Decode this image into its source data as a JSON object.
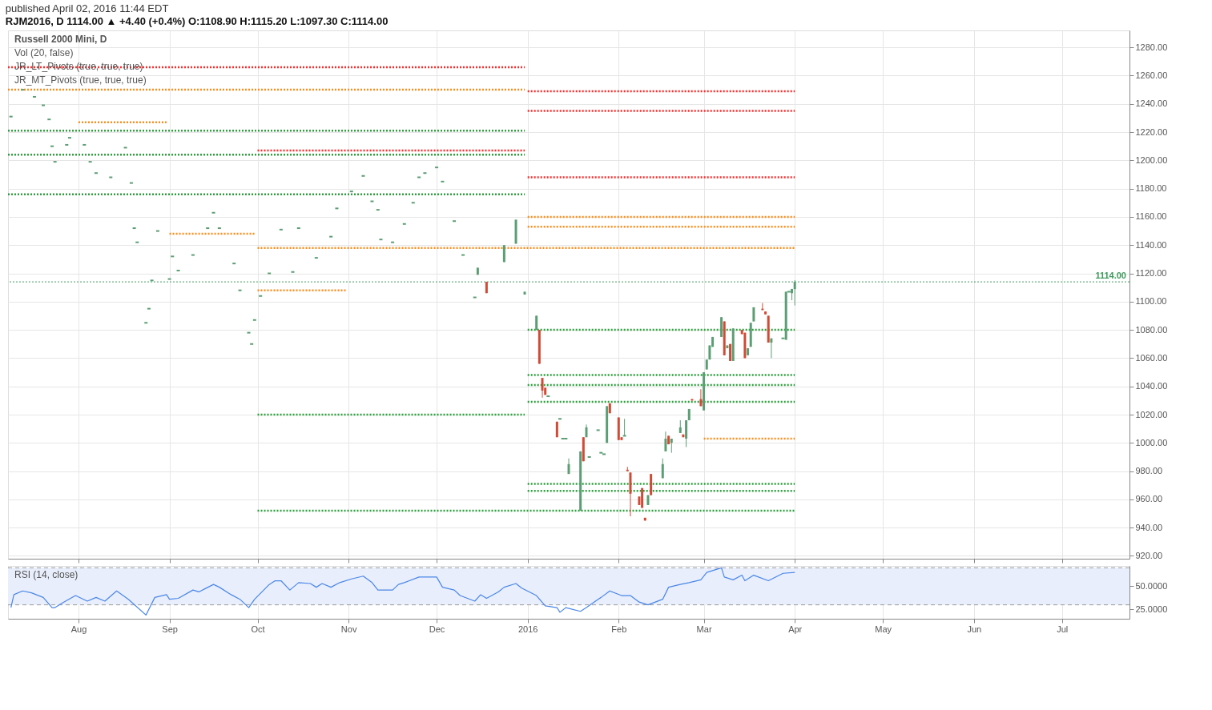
{
  "chart_data": [
    {
      "type": "candlestick",
      "title": "published April 02, 2016 11:44 EDT",
      "subtitle": "RJM2016, D  1114.00 ▲ +4.40 (+0.4%)  O:1108.90 H:1115.20 L:1097.30 C:1114.00",
      "annotations": [
        "Russell 2000 Mini, D",
        "Vol (20, false)",
        "JR_LT_Pivots (true, true, true)",
        "JR_MT_Pivots (true, true, true)"
      ],
      "xlim": [
        "2015-07-08",
        "2016-07-24"
      ],
      "xticks": [
        {
          "value": "2015-08-01",
          "label": null
        },
        {
          "value": "2015-09-01",
          "label": null
        },
        {
          "value": "2015-10-01",
          "label": null
        },
        {
          "value": "2015-11-01",
          "label": null
        },
        {
          "value": "2015-12-01",
          "label": null
        },
        {
          "value": "2016-01-01",
          "label": null
        },
        {
          "value": "2016-02-01",
          "label": null
        },
        {
          "value": "2016-03-01",
          "label": null
        },
        {
          "value": "2016-04-01",
          "label": null
        },
        {
          "value": "2016-05-01",
          "label": null
        },
        {
          "value": "2016-06-01",
          "label": null
        },
        {
          "value": "2016-07-01",
          "label": null
        }
      ],
      "ylim": [
        918,
        1292
      ],
      "yticks": [
        {
          "value": 920,
          "label": "920.00"
        },
        {
          "value": 940,
          "label": "940.00"
        },
        {
          "value": 960,
          "label": "960.00"
        },
        {
          "value": 980,
          "label": "980.00"
        },
        {
          "value": 1000,
          "label": "1000.00"
        },
        {
          "value": 1020,
          "label": "1020.00"
        },
        {
          "value": 1040,
          "label": "1040.00"
        },
        {
          "value": 1060,
          "label": "1060.00"
        },
        {
          "value": 1080,
          "label": "1080.00"
        },
        {
          "value": 1100,
          "label": "1100.00"
        },
        {
          "value": 1120,
          "label": "1120.00"
        },
        {
          "value": 1140,
          "label": "1140.00"
        },
        {
          "value": 1160,
          "label": "1160.00"
        },
        {
          "value": 1180,
          "label": "1180.00"
        },
        {
          "value": 1200,
          "label": "1200.00"
        },
        {
          "value": 1220,
          "label": "1220.00"
        },
        {
          "value": 1240,
          "label": "1240.00"
        },
        {
          "value": 1260,
          "label": "1260.00"
        },
        {
          "value": 1280,
          "label": "1280.00"
        }
      ],
      "grid": true,
      "tick_labels": "y",
      "ref_lines": [
        {
          "axis": "y",
          "value": 1114,
          "label": "1114.00",
          "color": "#3d9a5c",
          "line_style": "dotted"
        }
      ],
      "series": [
        {
          "type": "line",
          "color": "#ff2a2a",
          "line_style": "dotted",
          "x": [
            "2015-07-08",
            "2015-12-31"
          ],
          "values": [
            1266,
            1266
          ]
        },
        {
          "type": "line",
          "color": "#ff2a2a",
          "line_style": "dotted",
          "x": [
            "2016-01-01",
            "2016-04-01"
          ],
          "values": [
            1249,
            1249
          ]
        },
        {
          "type": "line",
          "color": "#ff2a2a",
          "line_style": "dotted",
          "x": [
            "2016-01-01",
            "2016-04-01"
          ],
          "values": [
            1235,
            1235
          ]
        },
        {
          "type": "line",
          "color": "#ff2a2a",
          "line_style": "dotted",
          "x": [
            "2016-01-01",
            "2016-04-01"
          ],
          "values": [
            1188,
            1188
          ]
        },
        {
          "type": "line",
          "color": "#ff2a2a",
          "line_style": "dotted",
          "x": [
            "2015-10-01",
            "2015-12-31"
          ],
          "values": [
            1207,
            1207
          ]
        },
        {
          "type": "line",
          "color": "#ff8c1a",
          "line_style": "dotted",
          "x": [
            "2015-07-08",
            "2015-12-31"
          ],
          "values": [
            1250,
            1250
          ]
        },
        {
          "type": "line",
          "color": "#ff8c1a",
          "line_style": "dotted",
          "x": [
            "2016-01-01",
            "2016-04-01"
          ],
          "values": [
            1160,
            1160
          ]
        },
        {
          "type": "line",
          "color": "#ff8c1a",
          "line_style": "dotted",
          "x": [
            "2016-01-01",
            "2016-04-01"
          ],
          "values": [
            1153,
            1153
          ]
        },
        {
          "type": "line",
          "color": "#ff8c1a",
          "line_style": "dotted",
          "x": [
            "2015-10-01",
            "2016-04-01"
          ],
          "values": [
            1138,
            1138
          ]
        },
        {
          "type": "line",
          "color": "#ff8c1a",
          "line_style": "dotted",
          "x": [
            "2016-03-01",
            "2016-04-01"
          ],
          "values": [
            1003,
            1003
          ]
        },
        {
          "type": "line",
          "color": "#ff8c1a",
          "line_style": "dotted",
          "x": [
            "2015-10-01",
            "2015-10-31"
          ],
          "values": [
            1108,
            1108
          ]
        },
        {
          "type": "line",
          "color": "#ff8c1a",
          "line_style": "dotted",
          "x": [
            "2015-09-01",
            "2015-09-30"
          ],
          "values": [
            1148,
            1148
          ]
        },
        {
          "type": "line",
          "color": "#ff8c1a",
          "line_style": "dotted",
          "x": [
            "2015-08-01",
            "2015-08-31"
          ],
          "values": [
            1227,
            1227
          ]
        },
        {
          "type": "line",
          "color": "#2e9e3e",
          "line_style": "dotted",
          "x": [
            "2015-07-08",
            "2015-12-31"
          ],
          "values": [
            1221,
            1221
          ]
        },
        {
          "type": "line",
          "color": "#2e9e3e",
          "line_style": "dotted",
          "x": [
            "2015-07-08",
            "2015-12-31"
          ],
          "values": [
            1204,
            1204
          ]
        },
        {
          "type": "line",
          "color": "#2e9e3e",
          "line_style": "dotted",
          "x": [
            "2015-07-08",
            "2015-12-31"
          ],
          "values": [
            1176,
            1176
          ]
        },
        {
          "type": "line",
          "color": "#2e9e3e",
          "line_style": "dotted",
          "x": [
            "2015-10-01",
            "2015-12-31"
          ],
          "values": [
            1020,
            1020
          ]
        },
        {
          "type": "line",
          "color": "#2e9e3e",
          "line_style": "dotted",
          "x": [
            "2016-01-01",
            "2016-04-01"
          ],
          "values": [
            1080,
            1080
          ]
        },
        {
          "type": "line",
          "color": "#2e9e3e",
          "line_style": "dotted",
          "x": [
            "2016-01-01",
            "2016-04-01"
          ],
          "values": [
            1048,
            1048
          ]
        },
        {
          "type": "line",
          "color": "#2e9e3e",
          "line_style": "dotted",
          "x": [
            "2016-01-01",
            "2016-04-01"
          ],
          "values": [
            1041,
            1041
          ]
        },
        {
          "type": "line",
          "color": "#2e9e3e",
          "line_style": "dotted",
          "x": [
            "2016-01-01",
            "2016-04-01"
          ],
          "values": [
            1029,
            1029
          ]
        },
        {
          "type": "line",
          "color": "#2e9e3e",
          "line_style": "dotted",
          "x": [
            "2016-01-01",
            "2016-04-01"
          ],
          "values": [
            971,
            971
          ]
        },
        {
          "type": "line",
          "color": "#2e9e3e",
          "line_style": "dotted",
          "x": [
            "2016-01-01",
            "2016-04-01"
          ],
          "values": [
            966,
            966
          ]
        },
        {
          "type": "line",
          "color": "#2e9e3e",
          "line_style": "dotted",
          "x": [
            "2015-10-01",
            "2016-04-01"
          ],
          "values": [
            952,
            952
          ]
        },
        {
          "color": "#5c9e74",
          "x": [
            "2015-07-09",
            "2015-07-13",
            "2015-07-17",
            "2015-07-20",
            "2015-07-22",
            "2015-07-23",
            "2015-07-24",
            "2015-07-28",
            "2015-07-29",
            "2015-08-03",
            "2015-08-05",
            "2015-08-07",
            "2015-08-12",
            "2015-08-17",
            "2015-08-19",
            "2015-08-20",
            "2015-08-21",
            "2015-08-24",
            "2015-08-25",
            "2015-08-26",
            "2015-08-28",
            "2015-09-01",
            "2015-09-02",
            "2015-09-04",
            "2015-09-09",
            "2015-09-14",
            "2015-09-16",
            "2015-09-18",
            "2015-09-23",
            "2015-09-25",
            "2015-09-28",
            "2015-09-29",
            "2015-09-30",
            "2015-10-02",
            "2015-10-05",
            "2015-10-09",
            "2015-10-13",
            "2015-10-15",
            "2015-10-21",
            "2015-10-26",
            "2015-10-28",
            "2015-11-02",
            "2015-11-06",
            "2015-11-09",
            "2015-11-11",
            "2015-11-12",
            "2015-11-16",
            "2015-11-20",
            "2015-11-23",
            "2015-11-25",
            "2015-11-27",
            "2015-12-01",
            "2015-12-03",
            "2015-12-07",
            "2015-12-10",
            "2015-12-14",
            "2015-12-15",
            "2015-12-24",
            "2015-12-28",
            "2015-12-31",
            "2016-01-04",
            "2016-01-08",
            "2016-01-12",
            "2016-01-13",
            "2016-01-14",
            "2016-01-15",
            "2016-01-19",
            "2016-01-21",
            "2016-01-22",
            "2016-01-25",
            "2016-01-26",
            "2016-01-27",
            "2016-01-28",
            "2016-02-03",
            "2016-02-11",
            "2016-02-16",
            "2016-02-17",
            "2016-02-19",
            "2016-02-22",
            "2016-02-24",
            "2016-02-25",
            "2016-03-01",
            "2016-03-02",
            "2016-03-03",
            "2016-03-04",
            "2016-03-07",
            "2016-03-09",
            "2016-03-11",
            "2016-03-16",
            "2016-03-17",
            "2016-03-18",
            "2016-03-24",
            "2016-03-28",
            "2016-03-29",
            "2016-03-30",
            "2016-03-31",
            "2016-04-01"
          ],
          "ohlc": [
            [
              1231,
              1231,
              1231,
              1231
            ],
            [
              1250,
              1250,
              1250,
              1250
            ],
            [
              1245,
              1245,
              1245,
              1245
            ],
            [
              1239,
              1239,
              1239,
              1239
            ],
            [
              1229,
              1229,
              1229,
              1229
            ],
            [
              1210,
              1210,
              1210,
              1210
            ],
            [
              1199,
              1199,
              1199,
              1199
            ],
            [
              1211,
              1211,
              1211,
              1211
            ],
            [
              1216,
              1216,
              1216,
              1216
            ],
            [
              1211,
              1211,
              1211,
              1211
            ],
            [
              1199,
              1199,
              1199,
              1199
            ],
            [
              1191,
              1191,
              1191,
              1191
            ],
            [
              1188,
              1188,
              1188,
              1188
            ],
            [
              1209,
              1209,
              1209,
              1209
            ],
            [
              1184,
              1184,
              1184,
              1184
            ],
            [
              1152,
              1152,
              1152,
              1152
            ],
            [
              1142,
              1142,
              1142,
              1142
            ],
            [
              1085,
              1085,
              1085,
              1085
            ],
            [
              1095,
              1095,
              1095,
              1095
            ],
            [
              1115,
              1115,
              1115,
              1115
            ],
            [
              1150,
              1150,
              1150,
              1150
            ],
            [
              1116,
              1116,
              1116,
              1116
            ],
            [
              1132,
              1132,
              1132,
              1132
            ],
            [
              1122,
              1122,
              1122,
              1122
            ],
            [
              1133,
              1133,
              1133,
              1133
            ],
            [
              1152,
              1152,
              1152,
              1152
            ],
            [
              1163,
              1163,
              1163,
              1163
            ],
            [
              1152,
              1152,
              1152,
              1152
            ],
            [
              1127,
              1127,
              1127,
              1127
            ],
            [
              1108,
              1108,
              1108,
              1108
            ],
            [
              1078,
              1078,
              1078,
              1078
            ],
            [
              1070,
              1070,
              1070,
              1070
            ],
            [
              1087,
              1087,
              1087,
              1087
            ],
            [
              1104,
              1104,
              1104,
              1104
            ],
            [
              1120,
              1120,
              1120,
              1120
            ],
            [
              1151,
              1151,
              1151,
              1151
            ],
            [
              1121,
              1121,
              1121,
              1121
            ],
            [
              1152,
              1152,
              1152,
              1152
            ],
            [
              1131,
              1131,
              1131,
              1131
            ],
            [
              1146,
              1146,
              1146,
              1146
            ],
            [
              1166,
              1166,
              1166,
              1166
            ],
            [
              1178,
              1178,
              1178,
              1178
            ],
            [
              1189,
              1189,
              1189,
              1189
            ],
            [
              1171,
              1171,
              1171,
              1171
            ],
            [
              1165,
              1165,
              1165,
              1165
            ],
            [
              1144,
              1144,
              1144,
              1144
            ],
            [
              1142,
              1142,
              1142,
              1142
            ],
            [
              1155,
              1155,
              1155,
              1155
            ],
            [
              1170,
              1170,
              1170,
              1170
            ],
            [
              1188,
              1188,
              1188,
              1188
            ],
            [
              1191,
              1191,
              1191,
              1191
            ],
            [
              1195,
              1195,
              1195,
              1195
            ],
            [
              1185,
              1185,
              1185,
              1185
            ],
            [
              1157,
              1157,
              1157,
              1157
            ],
            [
              1133,
              1133,
              1133,
              1133
            ],
            [
              1103,
              1103,
              1103,
              1103
            ],
            [
              1119,
              1124,
              1119,
              1124
            ],
            [
              1128,
              1140,
              1128,
              1140
            ],
            [
              1141,
              1158,
              1141,
              1158
            ],
            [
              1105,
              1107,
              1105,
              1107
            ],
            [
              1080,
              1090,
              1080,
              1090
            ],
            [
              1033,
              1033,
              1033,
              1033
            ],
            [
              1017,
              1017,
              1017,
              1017
            ],
            [
              1003,
              1003,
              1003,
              1003
            ],
            [
              1003,
              1003,
              1003,
              1003
            ],
            [
              978,
              989,
              978,
              985
            ],
            [
              952,
              994,
              952,
              994
            ],
            [
              1004,
              1013,
              1004,
              1011
            ],
            [
              990,
              990,
              990,
              990
            ],
            [
              1009,
              1009,
              1009,
              1009
            ],
            [
              993,
              993,
              993,
              993
            ],
            [
              992,
              992,
              992,
              992
            ],
            [
              1000,
              1026,
              1000,
              1026
            ],
            [
              1005,
              1017,
              1005,
              1005
            ],
            [
              956,
              963,
              956,
              963
            ],
            [
              975,
              989,
              975,
              985
            ],
            [
              994,
              1008,
              994,
              1003
            ],
            [
              1000,
              1003,
              993,
              1003
            ],
            [
              1007,
              1016,
              1007,
              1011
            ],
            [
              1003,
              1016,
              997,
              1016
            ],
            [
              1016,
              1024,
              1016,
              1024
            ],
            [
              1023,
              1050,
              1023,
              1050
            ],
            [
              1052,
              1059,
              1052,
              1059
            ],
            [
              1059,
              1069,
              1059,
              1069
            ],
            [
              1068,
              1075,
              1068,
              1075
            ],
            [
              1075,
              1089,
              1075,
              1089
            ],
            [
              1067,
              1069,
              1067,
              1069
            ],
            [
              1058,
              1081,
              1058,
              1081
            ],
            [
              1062,
              1067,
              1062,
              1067
            ],
            [
              1068,
              1085,
              1068,
              1085
            ],
            [
              1086,
              1096,
              1086,
              1096
            ],
            [
              1071,
              1074,
              1060,
              1074
            ],
            [
              1074,
              1074,
              1074,
              1074
            ],
            [
              1073,
              1107,
              1073,
              1107
            ],
            [
              1107,
              1107,
              1107,
              1107
            ],
            [
              1106,
              1109,
              1101,
              1109
            ],
            [
              1108.9,
              1115.2,
              1097.3,
              1114
            ]
          ]
        },
        {
          "color": "#d04a35",
          "x": [
            "2015-12-18",
            "2016-01-05",
            "2016-01-06",
            "2016-01-07",
            "2016-01-11",
            "2016-01-20",
            "2016-01-29",
            "2016-02-01",
            "2016-02-02",
            "2016-02-04",
            "2016-02-05",
            "2016-02-08",
            "2016-02-09",
            "2016-02-10",
            "2016-02-12",
            "2016-02-18",
            "2016-02-23",
            "2016-02-26",
            "2016-02-29",
            "2016-03-08",
            "2016-03-10",
            "2016-03-14",
            "2016-03-15",
            "2016-03-21",
            "2016-03-22",
            "2016-03-23"
          ],
          "ohlc": [
            [
              1114,
              1114,
              1106,
              1106
            ],
            [
              1080,
              1080,
              1056,
              1056
            ],
            [
              1046,
              1046,
              1032,
              1037
            ],
            [
              1039,
              1039,
              1034,
              1034
            ],
            [
              1015,
              1015,
              1004,
              1004
            ],
            [
              1004,
              1004,
              987,
              987
            ],
            [
              1028,
              1028,
              1021,
              1021
            ],
            [
              1018,
              1018,
              1002,
              1002
            ],
            [
              1004,
              1004,
              1002,
              1002
            ],
            [
              981,
              983,
              980,
              980
            ],
            [
              979,
              979,
              948,
              964
            ],
            [
              962,
              962,
              956,
              956
            ],
            [
              968,
              968,
              954,
              954
            ],
            [
              947,
              947,
              945,
              945
            ],
            [
              978,
              978,
              963,
              963
            ],
            [
              1005,
              1005,
              999,
              999
            ],
            [
              1006,
              1006,
              1004,
              1004
            ],
            [
              1031,
              1031,
              1030,
              1030
            ],
            [
              1031,
              1038,
              1026,
              1026
            ],
            [
              1086,
              1086,
              1062,
              1062
            ],
            [
              1070,
              1070,
              1058,
              1058
            ],
            [
              1080,
              1080,
              1077,
              1077
            ],
            [
              1078,
              1078,
              1060,
              1060
            ],
            [
              1095,
              1099,
              1094,
              1094
            ],
            [
              1093,
              1093,
              1091,
              1091
            ],
            [
              1090,
              1090,
              1071,
              1071
            ]
          ]
        }
      ]
    },
    {
      "type": "line",
      "annotations": [
        "RSI (14, close)"
      ],
      "xlim": [
        "2015-07-08",
        "2016-07-24"
      ],
      "xticks": [
        {
          "value": "2015-08-01",
          "label": "Aug"
        },
        {
          "value": "2015-09-01",
          "label": "Sep"
        },
        {
          "value": "2015-10-01",
          "label": "Oct"
        },
        {
          "value": "2015-11-01",
          "label": "Nov"
        },
        {
          "value": "2015-12-01",
          "label": "Dec"
        },
        {
          "value": "2016-01-01",
          "label": "2016"
        },
        {
          "value": "2016-02-01",
          "label": "Feb"
        },
        {
          "value": "2016-03-01",
          "label": "Mar"
        },
        {
          "value": "2016-04-01",
          "label": "Apr"
        },
        {
          "value": "2016-05-01",
          "label": "May"
        },
        {
          "value": "2016-06-01",
          "label": "Jun"
        },
        {
          "value": "2016-07-01",
          "label": "Jul"
        }
      ],
      "ylim": [
        15,
        72
      ],
      "yticks": [
        {
          "value": 25,
          "label": "25.0000"
        },
        {
          "value": 50,
          "label": "50.0000"
        }
      ],
      "grid": "x",
      "bands": [
        {
          "axis": "y",
          "from": 30,
          "to": 70,
          "color": "#e8eefb"
        }
      ],
      "ref_lines": [
        {
          "axis": "y",
          "value": 70,
          "color": "#9a9a9a",
          "line_style": "dashed"
        },
        {
          "axis": "y",
          "value": 30,
          "color": "#9a9a9a",
          "line_style": "dashed"
        }
      ],
      "series": [
        {
          "color": "#4a86e8",
          "line_style": "solid",
          "x": [
            "2015-07-09",
            "2015-07-10",
            "2015-07-13",
            "2015-07-16",
            "2015-07-20",
            "2015-07-23",
            "2015-07-24",
            "2015-07-27",
            "2015-07-31",
            "2015-08-04",
            "2015-08-07",
            "2015-08-10",
            "2015-08-14",
            "2015-08-18",
            "2015-08-24",
            "2015-08-27",
            "2015-08-31",
            "2015-09-01",
            "2015-09-04",
            "2015-09-09",
            "2015-09-11",
            "2015-09-16",
            "2015-09-18",
            "2015-09-22",
            "2015-09-25",
            "2015-09-28",
            "2015-09-30",
            "2015-10-05",
            "2015-10-07",
            "2015-10-09",
            "2015-10-12",
            "2015-10-15",
            "2015-10-19",
            "2015-10-21",
            "2015-10-23",
            "2015-10-26",
            "2015-10-29",
            "2015-11-02",
            "2015-11-06",
            "2015-11-09",
            "2015-11-11",
            "2015-11-16",
            "2015-11-18",
            "2015-11-20",
            "2015-11-25",
            "2015-11-27",
            "2015-12-01",
            "2015-12-03",
            "2015-12-07",
            "2015-12-09",
            "2015-12-14",
            "2015-12-16",
            "2015-12-18",
            "2015-12-22",
            "2015-12-24",
            "2015-12-28",
            "2015-12-30",
            "2016-01-04",
            "2016-01-07",
            "2016-01-11",
            "2016-01-12",
            "2016-01-14",
            "2016-01-19",
            "2016-01-21",
            "2016-01-25",
            "2016-01-26",
            "2016-01-29",
            "2016-02-02",
            "2016-02-05",
            "2016-02-08",
            "2016-02-11",
            "2016-02-16",
            "2016-02-18",
            "2016-02-22",
            "2016-02-25",
            "2016-02-29",
            "2016-03-02",
            "2016-03-07",
            "2016-03-08",
            "2016-03-11",
            "2016-03-14",
            "2016-03-15",
            "2016-03-18",
            "2016-03-23",
            "2016-03-28",
            "2016-04-01"
          ],
          "values": [
            27,
            41,
            45,
            43,
            38,
            27,
            27,
            33,
            40,
            34,
            38,
            34,
            45,
            36,
            19,
            38,
            41,
            36,
            37,
            46,
            44,
            52,
            49,
            41,
            36,
            27,
            36,
            52,
            56,
            56,
            46,
            54,
            53,
            49,
            53,
            49,
            54,
            58,
            61,
            54,
            46,
            46,
            52,
            54,
            60,
            60,
            60,
            49,
            46,
            40,
            34,
            41,
            37,
            44,
            49,
            53,
            48,
            40,
            29,
            27,
            22,
            27,
            23,
            27,
            36,
            38,
            45,
            40,
            40,
            33,
            30,
            36,
            49,
            52,
            54,
            57,
            65,
            70,
            60,
            57,
            62,
            56,
            62,
            56,
            64,
            65
          ]
        }
      ]
    }
  ]
}
